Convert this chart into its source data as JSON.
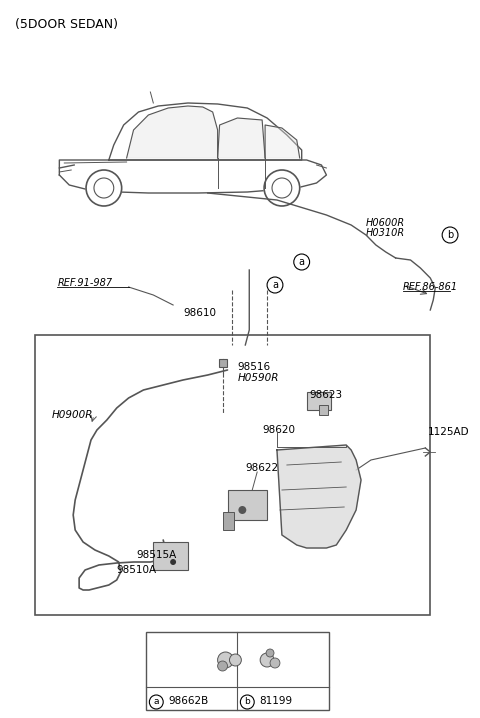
{
  "title": "(5DOOR SEDAN)",
  "background_color": "#ffffff",
  "line_color": "#555555",
  "text_color": "#000000",
  "fig_width": 4.8,
  "fig_height": 7.18,
  "dpi": 100,
  "parts": {
    "ref_91_987": "REF.91-987",
    "ref_86_861": "REF.86-861",
    "h0600r": "H0600R",
    "h0310r": "H0310R",
    "label_b_top": "b",
    "label_a1": "a",
    "label_a2": "a",
    "p98610": "98610",
    "p98516": "98516",
    "h0900r": "H0900R",
    "h0590r": "H0590R",
    "p98623": "98623",
    "p1125ad": "1125AD",
    "p98620": "98620",
    "p98622": "98622",
    "p98515a": "98515A",
    "p98510a": "98510A",
    "legend_a": "a",
    "legend_98662b": "98662B",
    "legend_b": "b",
    "legend_81199": "81199"
  }
}
